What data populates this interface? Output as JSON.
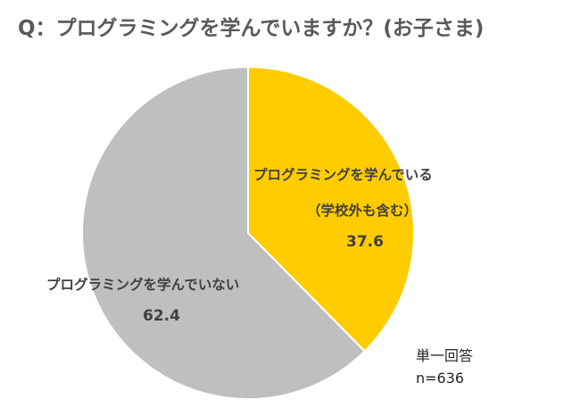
{
  "chart_data": {
    "type": "pie",
    "title": "Q：プログラミングを学んでいますか？(お子さま)",
    "slices": [
      {
        "label": "プログラミングを学んでいる",
        "sublabel": "（学校外も含む）",
        "value": 37.6,
        "color": "#FFCC00"
      },
      {
        "label": "プログラミングを学んでいない",
        "value": 62.4,
        "color": "#BFBFBF"
      }
    ],
    "start_angle": "12 o'clock",
    "direction": "clockwise"
  },
  "note": {
    "line1": "単一回答",
    "line2": "n=636"
  }
}
